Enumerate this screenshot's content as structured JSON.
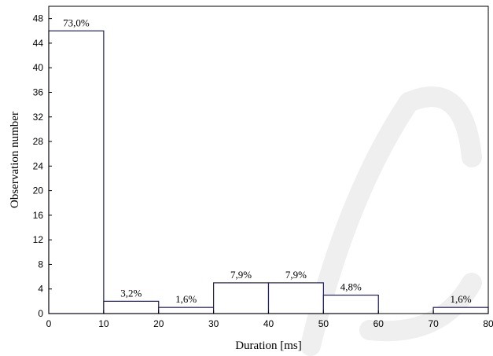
{
  "chart_data": {
    "type": "bar",
    "subtype": "histogram",
    "xlabel": "Duration [ms]",
    "ylabel": "Observation number",
    "xlim": [
      0,
      80
    ],
    "ylim": [
      0,
      50
    ],
    "x_ticks": [
      0,
      10,
      20,
      30,
      40,
      50,
      60,
      70,
      80
    ],
    "y_ticks": [
      0,
      4,
      8,
      12,
      16,
      20,
      24,
      28,
      32,
      36,
      40,
      44,
      48
    ],
    "grid": false,
    "bins": [
      {
        "x0": 0,
        "x1": 10,
        "value": 46,
        "label": "73,0%"
      },
      {
        "x0": 10,
        "x1": 20,
        "value": 2,
        "label": "3,2%"
      },
      {
        "x0": 20,
        "x1": 30,
        "value": 1,
        "label": "1,6%"
      },
      {
        "x0": 30,
        "x1": 40,
        "value": 5,
        "label": "7,9%"
      },
      {
        "x0": 40,
        "x1": 50,
        "value": 5,
        "label": "7,9%"
      },
      {
        "x0": 50,
        "x1": 60,
        "value": 3,
        "label": "4,8%"
      },
      {
        "x0": 60,
        "x1": 70,
        "value": 0,
        "label": ""
      },
      {
        "x0": 70,
        "x1": 80,
        "value": 1,
        "label": "1,6%"
      }
    ],
    "colors": {
      "bar_stroke": "#1f1f5c",
      "bar_fill": "#ffffff",
      "axis": "#000000",
      "watermark": "#efefef"
    }
  }
}
